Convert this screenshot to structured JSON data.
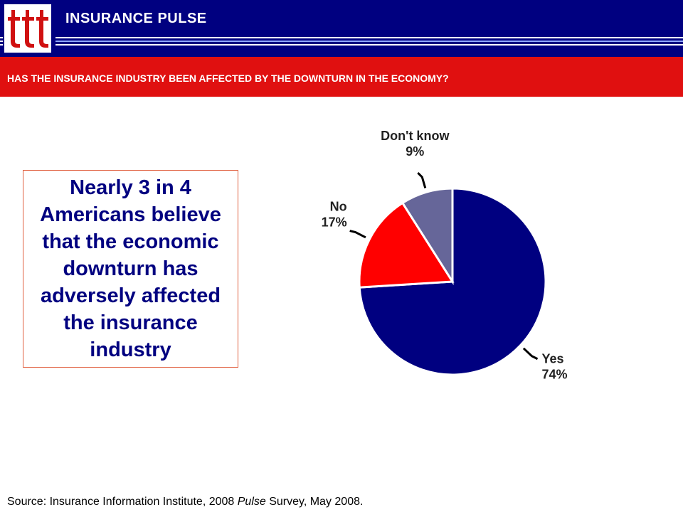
{
  "header": {
    "brand": "INSURANCE PULSE",
    "question": "HAS THE INSURANCE INDUSTRY BEEN AFFECTED BY THE DOWNTURN IN THE ECONOMY?"
  },
  "colors": {
    "header_bg": "#000080",
    "question_bg": "#e01010",
    "yes": "#000080",
    "no": "#ff0000",
    "dont_know": "#666699",
    "callout_text": "#000080"
  },
  "callout": "Nearly 3 in 4 Americans believe that the economic downturn has adversely affected the insurance industry",
  "source": {
    "prefix": "Source: Insurance Information Institute, 2008 ",
    "italic": "Pulse",
    "suffix": " Survey, May 2008."
  },
  "chart_data": {
    "type": "pie",
    "unit": "%",
    "slices": [
      {
        "label": "Yes",
        "value": 74,
        "display": "74%",
        "color": "#000080"
      },
      {
        "label": "No",
        "value": 17,
        "display": "17%",
        "color": "#ff0000"
      },
      {
        "label": "Don't know",
        "value": 9,
        "display": "9%",
        "color": "#666699"
      }
    ]
  }
}
